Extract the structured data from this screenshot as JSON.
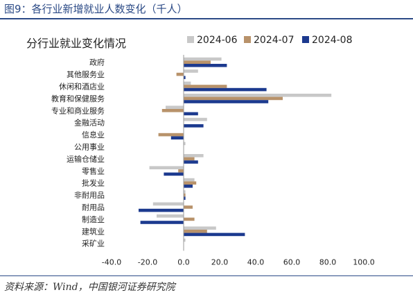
{
  "figure_title": "图9：各行业新增就业人数变化（千人）",
  "source_note": "资料来源：Wind，中国银河证券研究院",
  "colors": {
    "frame": "#2b4a86",
    "series": [
      "#c8c8c8",
      "#b8926a",
      "#1c3a8f"
    ]
  },
  "chart_data": {
    "type": "bar",
    "orientation": "horizontal",
    "title": "分行业就业变化情况",
    "xlabel": "",
    "ylabel": "",
    "xlim": [
      -40,
      100
    ],
    "xticks": [
      -40,
      -20,
      0,
      20,
      40,
      60,
      80,
      100
    ],
    "xtick_labels": [
      "-40.0",
      "-20.0",
      "0.0",
      "20.0",
      "40.0",
      "60.0",
      "80.0",
      "100.0"
    ],
    "grid": false,
    "legend_position": "top",
    "categories": [
      "政府",
      "其他服务业",
      "休闲和酒店业",
      "教育和保健服务",
      "专业和商业服务",
      "金融活动",
      "信息业",
      "公用事业",
      "运输仓储业",
      "零售业",
      "批发业",
      "非耐用品",
      "耐用品",
      "制造业",
      "建筑业",
      "采矿业"
    ],
    "series": [
      {
        "name": "2024-06",
        "values": [
          21,
          8,
          4,
          82,
          -10,
          13,
          0,
          1,
          11,
          -19,
          6,
          1,
          -17,
          -15,
          18,
          1
        ]
      },
      {
        "name": "2024-07",
        "values": [
          15,
          -4,
          24,
          55,
          -12,
          0,
          -14,
          0,
          6,
          -3,
          7,
          1,
          5,
          6,
          13,
          0
        ]
      },
      {
        "name": "2024-08",
        "values": [
          24,
          1,
          46,
          47,
          8,
          11,
          -7,
          0,
          8,
          -11,
          5,
          1,
          -25,
          -24,
          34,
          0
        ]
      }
    ]
  }
}
